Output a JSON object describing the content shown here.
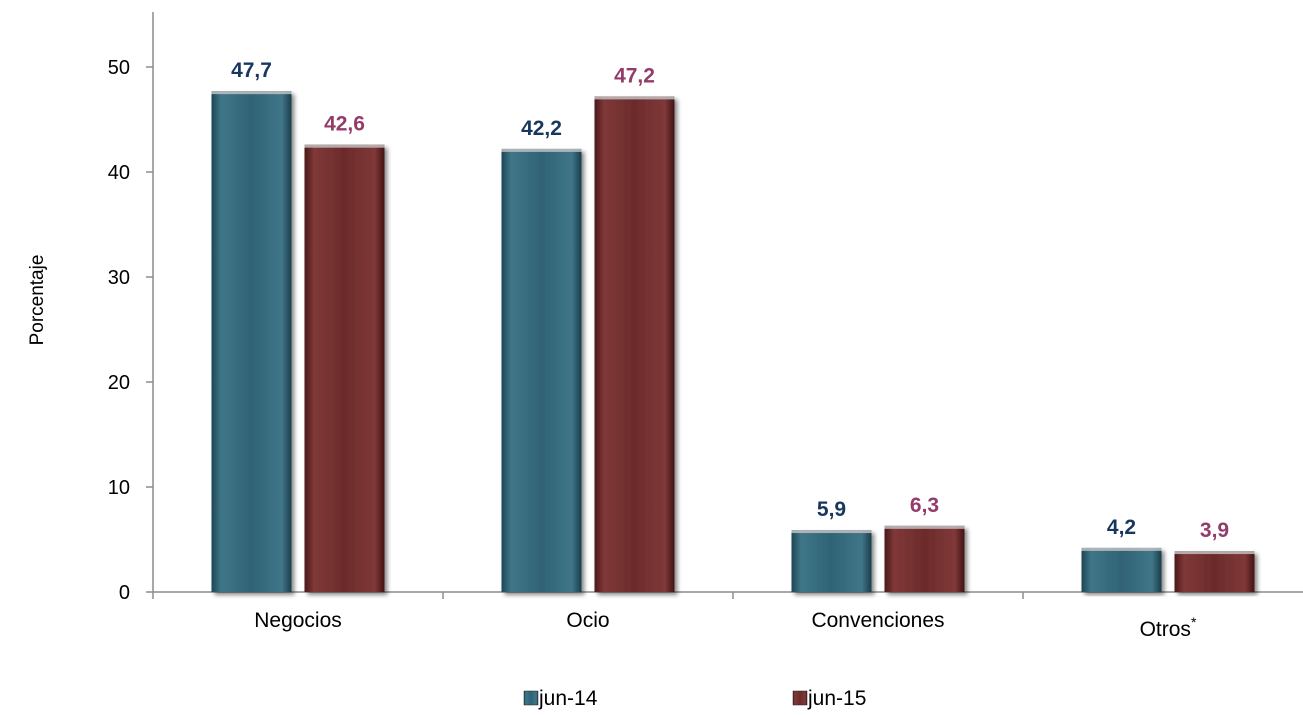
{
  "chart_data": {
    "type": "bar",
    "categories": [
      "Negocios",
      "Ocio",
      "Convenciones",
      "Otros"
    ],
    "category_superscripts": [
      "",
      "",
      "",
      "*"
    ],
    "series": [
      {
        "name": "jun-14",
        "values": [
          47.7,
          42.2,
          5.9,
          4.2
        ],
        "labels": [
          "47,7",
          "42,2",
          "5,9",
          "4,2"
        ],
        "color": "#2d6072",
        "label_color": "#17375e"
      },
      {
        "name": "jun-15",
        "values": [
          42.6,
          47.2,
          6.3,
          3.9
        ],
        "labels": [
          "42,6",
          "47,2",
          "6,3",
          "3,9"
        ],
        "color": "#6b2a2a",
        "label_color": "#943b6a"
      }
    ],
    "xlabel": "",
    "ylabel": "Porcentaje",
    "ylim": [
      0,
      55
    ],
    "yticks": [
      0,
      10,
      20,
      30,
      40,
      50
    ],
    "grid": false,
    "legend_position": "bottom"
  }
}
